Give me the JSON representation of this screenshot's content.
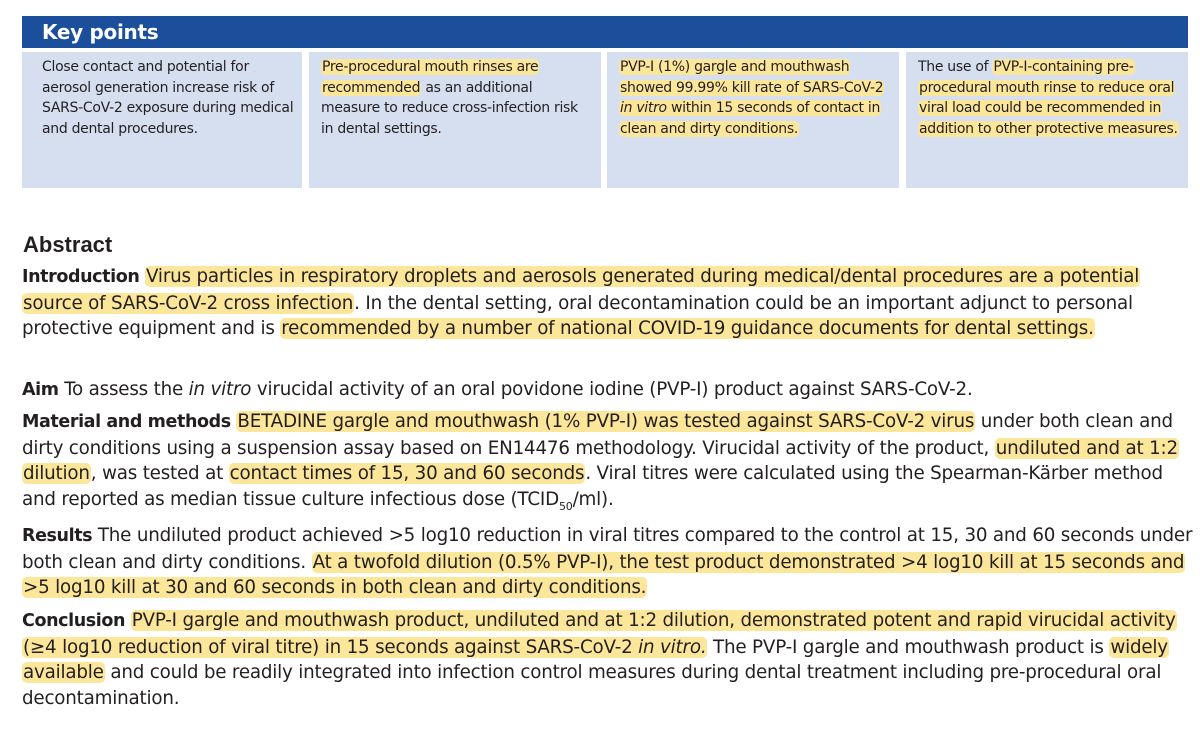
{
  "key_points": {
    "title": "Key points",
    "items": [
      {
        "text": "Close contact and potential for aerosol generation increase risk of SARS-CoV-2 exposure during medical and dental procedures."
      },
      {
        "hl_1": "Pre-procedural mouth rinses are recommended",
        "text_2": " as an additional measure to reduce cross-infection risk in dental settings."
      },
      {
        "hl_1": "PVP-I (1%) gargle and mouthwash showed 99.99% kill rate of SARS-CoV-2 ",
        "hl_1_italic": "in vitro",
        "hl_1_end": " within 15 seconds of contact in clean and dirty conditions."
      },
      {
        "text_1": "The use of ",
        "hl_1": "PVP-I-containing pre-procedural mouth rinse to reduce oral viral load could be recommended in addition to other protective measures."
      }
    ]
  },
  "abstract": {
    "title": "Abstract",
    "introduction": {
      "label": "Introduction",
      "hl_1": "Virus particles in respiratory droplets and aerosols generated during medical/dental procedures are a potential source of SARS-CoV-2 cross infection",
      "text_2": ". In the dental setting, oral decontamination could be an important adjunct to personal protective equipment and is ",
      "hl_2": "recommended by a number of national COVID-19 guidance documents for dental settings."
    },
    "aim": {
      "label": "Aim",
      "text_1": "To assess the ",
      "italic_1": "in vitro",
      "text_2": " virucidal activity of an oral povidone iodine (PVP-I) product against SARS-CoV-2."
    },
    "methods": {
      "label": "Material and methods",
      "hl_1": "BETADINE gargle and mouthwash (1% PVP-I) was tested against SARS-CoV-2 virus",
      "text_2": " under both clean and dirty conditions using a suspension assay based on EN14476 methodology. Virucidal activity of the product, ",
      "hl_2": "undiluted and at 1:2 dilution",
      "text_3": ", was tested at ",
      "hl_3": "contact times of 15, 30 and 60 seconds",
      "text_4": ". Viral titres were calculated using the Spearman-Kärber method and reported as median tissue culture infectious dose (TCID",
      "sub_1": "50",
      "text_5": "/ml)."
    },
    "results": {
      "label": "Results",
      "text_1": "The undiluted product achieved >5 log10 reduction in viral titres compared to the control at 15, 30 and 60 seconds under both clean and dirty conditions. ",
      "hl_1": "At a twofold dilution (0.5% PVP-I), the test product demonstrated >4 log10 kill at 15 seconds and >5 log10 kill at 30 and 60 seconds in both clean and dirty conditions."
    },
    "conclusion": {
      "label": "Conclusion",
      "hl_1": "PVP-I gargle and mouthwash product, undiluted and at 1:2 dilution, demonstrated potent and rapid virucidal activity (≥4 log10 reduction of viral titre) in 15 seconds against SARS-CoV-2 ",
      "hl_1_italic": "in vitro.",
      "text_2": " The PVP-I gargle and mouthwash product is ",
      "hl_2": "widely available",
      "text_3": " and could be readily integrated into infection control measures during dental treatment including pre-procedural oral decontamination."
    }
  },
  "colors": {
    "header_blue": "#1b4f9c",
    "box_bg": "#d6dff0",
    "highlight": "#fbe69a"
  }
}
